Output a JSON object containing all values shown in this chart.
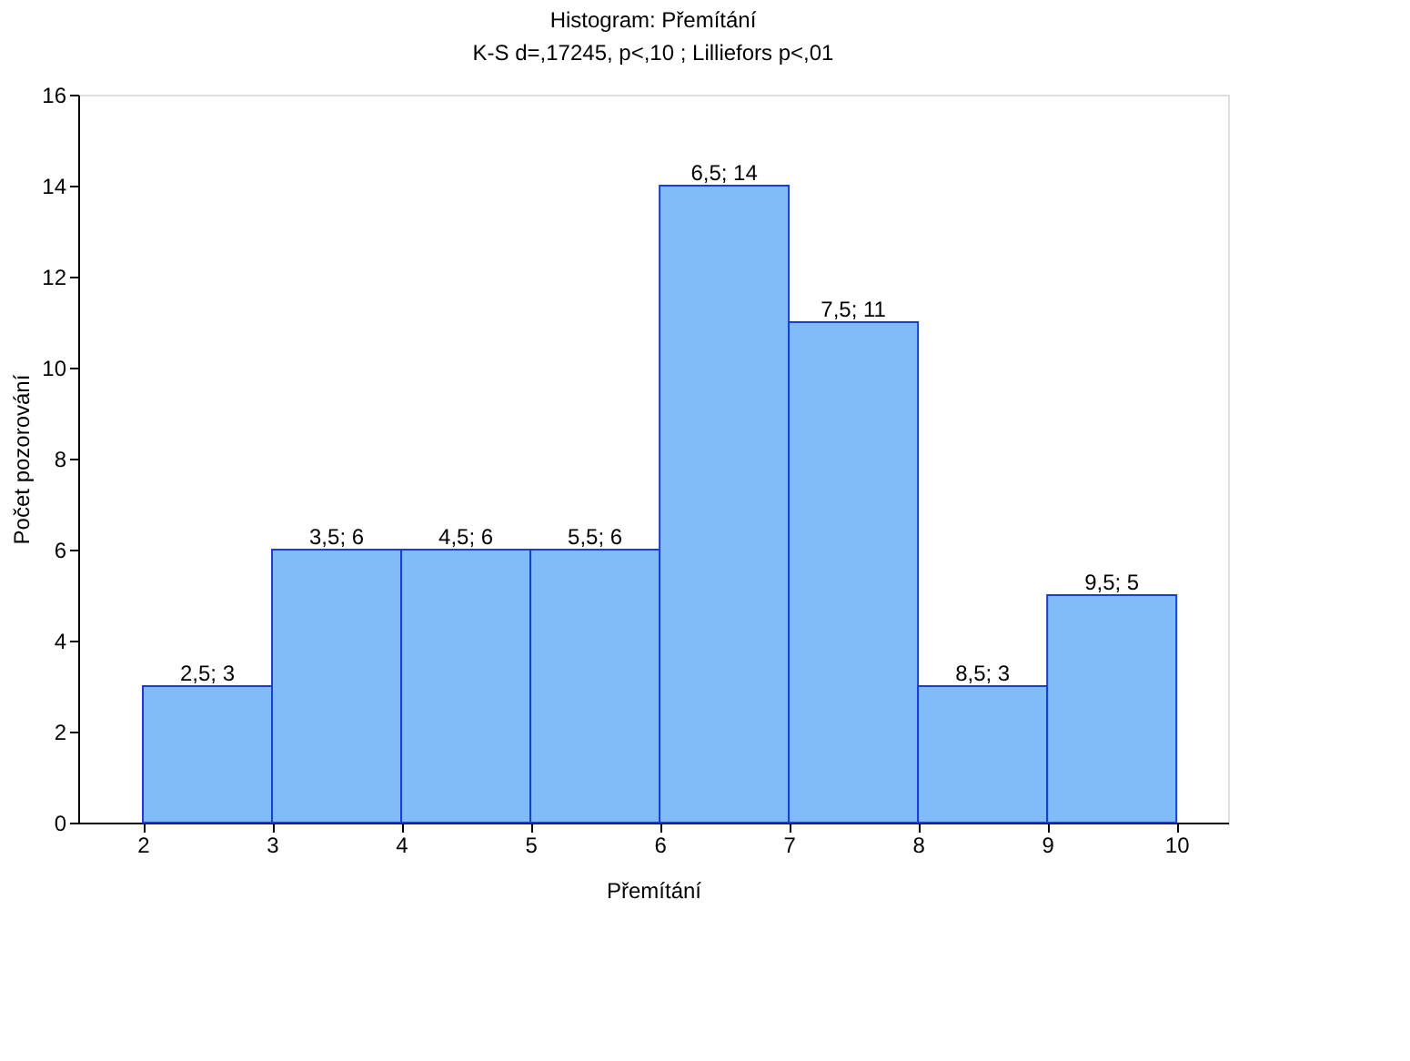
{
  "chart_data": {
    "type": "histogram",
    "title": "Histogram: Přemítání",
    "subtitle": "K-S d=,17245, p<,10 ; Lilliefors p<,01",
    "xlabel": "Přemítání",
    "ylabel": "Počet pozorování",
    "bins": [
      2,
      3,
      4,
      5,
      6,
      7,
      8,
      9,
      10
    ],
    "values": [
      3,
      6,
      6,
      6,
      14,
      11,
      3,
      5
    ],
    "value_labels": [
      "2,5; 3",
      "3,5; 6",
      "4,5; 6",
      "5,5; 6",
      "6,5; 14",
      "7,5; 11",
      "8,5; 3",
      "9,5; 5"
    ],
    "color": "#7fbcf8",
    "xlim": [
      1.5,
      10.4
    ],
    "xticks": [
      2,
      3,
      4,
      5,
      6,
      7,
      8,
      9,
      10
    ],
    "ylim": [
      0,
      16
    ],
    "yticks": [
      0,
      2,
      4,
      6,
      8,
      10,
      12,
      14,
      16
    ],
    "grid": false
  }
}
